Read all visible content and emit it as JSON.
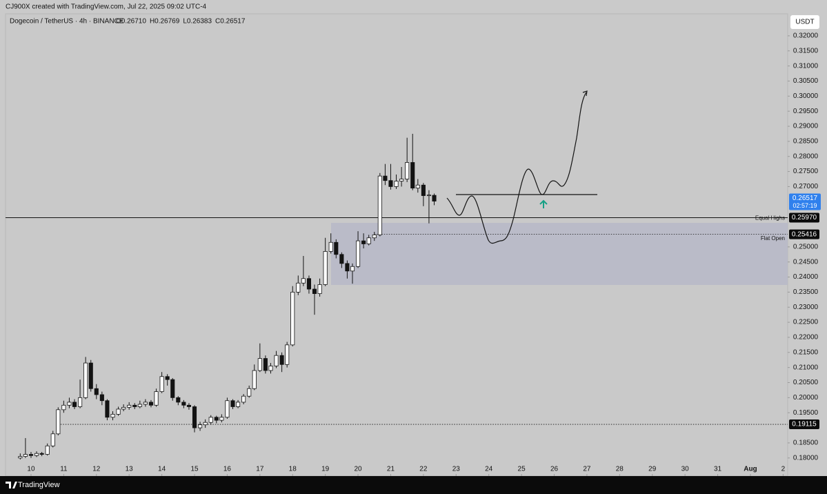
{
  "header": {
    "credit": "CJ900X created with TradingView.com, Jul 22, 2025 09:02 UTC-4",
    "brand": "TradingView"
  },
  "chart_data": {
    "type": "candlestick",
    "symbol": "Dogecoin / TetherUS · 4h · BINANCE",
    "ohlc_text": [
      "O0.26710",
      "H0.26769",
      "L0.26383",
      "C0.26517"
    ],
    "currency": "USDT",
    "up_color": "#ffffff",
    "down_color": "#131313",
    "x": [
      9.67,
      9.83,
      10,
      10.17,
      10.33,
      10.5,
      10.67,
      10.83,
      11,
      11.17,
      11.33,
      11.5,
      11.67,
      11.83,
      12,
      12.17,
      12.33,
      12.5,
      12.67,
      12.83,
      13,
      13.17,
      13.33,
      13.5,
      13.67,
      13.83,
      14,
      14.17,
      14.33,
      14.5,
      14.67,
      14.83,
      15,
      15.17,
      15.33,
      15.5,
      15.67,
      15.83,
      16,
      16.17,
      16.33,
      16.5,
      16.67,
      16.83,
      17,
      17.17,
      17.33,
      17.5,
      17.67,
      17.83,
      18,
      18.17,
      18.33,
      18.5,
      18.67,
      18.83,
      19,
      19.17,
      19.33,
      19.5,
      19.67,
      19.83,
      20,
      20.17,
      20.33,
      20.5,
      20.67,
      20.83,
      21,
      21.17,
      21.33,
      21.5,
      21.67,
      21.83,
      22,
      22.17,
      22.33
    ],
    "open": [
      0.18,
      0.1805,
      0.1812,
      0.1808,
      0.1815,
      0.1812,
      0.184,
      0.188,
      0.196,
      0.1975,
      0.1985,
      0.197,
      0.2,
      0.2115,
      0.203,
      0.201,
      0.199,
      0.1935,
      0.1945,
      0.1962,
      0.1968,
      0.1975,
      0.197,
      0.1978,
      0.1985,
      0.1975,
      0.202,
      0.207,
      0.206,
      0.2,
      0.1985,
      0.1975,
      0.197,
      0.19,
      0.191,
      0.1918,
      0.1935,
      0.1925,
      0.1935,
      0.199,
      0.197,
      0.1985,
      0.2005,
      0.203,
      0.209,
      0.213,
      0.209,
      0.2105,
      0.214,
      0.211,
      0.2175,
      0.235,
      0.238,
      0.2395,
      0.236,
      0.2345,
      0.2375,
      0.2485,
      0.2515,
      0.2475,
      0.2445,
      0.242,
      0.2435,
      0.252,
      0.251,
      0.253,
      0.254,
      0.2735,
      0.272,
      0.27,
      0.2718,
      0.2725,
      0.278,
      0.2695,
      0.2705,
      0.267,
      0.2671
    ],
    "high": [
      0.1815,
      0.1866,
      0.182,
      0.1822,
      0.182,
      0.1848,
      0.189,
      0.1968,
      0.199,
      0.2,
      0.1995,
      0.206,
      0.2135,
      0.2125,
      0.2045,
      0.202,
      0.1995,
      0.1955,
      0.197,
      0.1978,
      0.1985,
      0.1982,
      0.199,
      0.1995,
      0.1992,
      0.203,
      0.2085,
      0.2078,
      0.2065,
      0.2005,
      0.1992,
      0.1982,
      0.1975,
      0.192,
      0.1928,
      0.1942,
      0.194,
      0.1945,
      0.2,
      0.1995,
      0.1992,
      0.2012,
      0.204,
      0.211,
      0.218,
      0.214,
      0.2115,
      0.2155,
      0.215,
      0.2185,
      0.237,
      0.2405,
      0.247,
      0.2405,
      0.2375,
      0.2395,
      0.253,
      0.2545,
      0.2525,
      0.2482,
      0.2455,
      0.2445,
      0.2552,
      0.2545,
      0.254,
      0.255,
      0.2745,
      0.2775,
      0.2775,
      0.274,
      0.2765,
      0.2862,
      0.2875,
      0.2725,
      0.2712,
      0.2688,
      0.26769
    ],
    "low": [
      0.1795,
      0.18,
      0.18,
      0.1803,
      0.1806,
      0.1808,
      0.1835,
      0.1875,
      0.195,
      0.1965,
      0.1962,
      0.1965,
      0.1995,
      0.202,
      0.1995,
      0.1975,
      0.1925,
      0.1925,
      0.194,
      0.1955,
      0.196,
      0.1962,
      0.1965,
      0.197,
      0.1968,
      0.197,
      0.2015,
      0.204,
      0.199,
      0.1975,
      0.1965,
      0.196,
      0.1885,
      0.189,
      0.19,
      0.191,
      0.1915,
      0.1918,
      0.193,
      0.1962,
      0.1965,
      0.1978,
      0.2,
      0.2025,
      0.2085,
      0.208,
      0.208,
      0.2098,
      0.2085,
      0.21,
      0.217,
      0.234,
      0.237,
      0.2345,
      0.2275,
      0.2335,
      0.237,
      0.2478,
      0.2462,
      0.243,
      0.2395,
      0.2378,
      0.243,
      0.2495,
      0.2505,
      0.252,
      0.2535,
      0.2705,
      0.269,
      0.2692,
      0.27,
      0.2715,
      0.2688,
      0.268,
      0.2635,
      0.2578,
      0.26383
    ],
    "close": [
      0.1805,
      0.1812,
      0.1808,
      0.1815,
      0.1812,
      0.184,
      0.188,
      0.196,
      0.1975,
      0.1985,
      0.197,
      0.2,
      0.2115,
      0.203,
      0.201,
      0.199,
      0.1935,
      0.1945,
      0.1962,
      0.1968,
      0.1975,
      0.197,
      0.1978,
      0.1985,
      0.1975,
      0.202,
      0.207,
      0.206,
      0.2,
      0.1985,
      0.1975,
      0.197,
      0.19,
      0.191,
      0.1918,
      0.1935,
      0.1925,
      0.1935,
      0.199,
      0.197,
      0.1985,
      0.2005,
      0.203,
      0.209,
      0.213,
      0.209,
      0.2105,
      0.214,
      0.211,
      0.2175,
      0.235,
      0.238,
      0.2395,
      0.236,
      0.2345,
      0.2375,
      0.2485,
      0.2515,
      0.2475,
      0.2445,
      0.242,
      0.2435,
      0.252,
      0.251,
      0.253,
      0.254,
      0.2735,
      0.272,
      0.27,
      0.2718,
      0.2725,
      0.278,
      0.2695,
      0.2705,
      0.267,
      0.2672,
      0.26517
    ],
    "xlim": [
      9.22,
      33.14
    ],
    "ylim": [
      0.174,
      0.3273
    ],
    "xticks": [
      10,
      11,
      12,
      13,
      14,
      15,
      16,
      17,
      18,
      19,
      20,
      21,
      22,
      23,
      24,
      25,
      26,
      27,
      28,
      29,
      30,
      31,
      {
        "value": 32,
        "label": "Aug"
      },
      {
        "value": 33,
        "label": "2"
      }
    ],
    "yticks": [
      {
        "value": 0.18,
        "label": "0.18000"
      },
      {
        "value": 0.185,
        "label": "0.18500"
      },
      {
        "value": 0.195,
        "label": "0.19500"
      },
      {
        "value": 0.2,
        "label": "0.20000"
      },
      {
        "value": 0.205,
        "label": "0.20500"
      },
      {
        "value": 0.21,
        "label": "0.21000"
      },
      {
        "value": 0.215,
        "label": "0.21500"
      },
      {
        "value": 0.22,
        "label": "0.22000"
      },
      {
        "value": 0.225,
        "label": "0.22500"
      },
      {
        "value": 0.23,
        "label": "0.23000"
      },
      {
        "value": 0.235,
        "label": "0.23500"
      },
      {
        "value": 0.24,
        "label": "0.24000"
      },
      {
        "value": 0.245,
        "label": "0.24500"
      },
      {
        "value": 0.25,
        "label": "0.25000"
      },
      {
        "value": 0.27,
        "label": "0.27000"
      },
      {
        "value": 0.275,
        "label": "0.27500"
      },
      {
        "value": 0.28,
        "label": "0.28000"
      },
      {
        "value": 0.285,
        "label": "0.28500"
      },
      {
        "value": 0.29,
        "label": "0.29000"
      },
      {
        "value": 0.295,
        "label": "0.29500"
      },
      {
        "value": 0.3,
        "label": "0.30000"
      },
      {
        "value": 0.305,
        "label": "0.30500"
      },
      {
        "value": 0.31,
        "label": "0.31000"
      },
      {
        "value": 0.315,
        "label": "0.31500"
      },
      {
        "value": 0.32,
        "label": "0.32000"
      }
    ],
    "levels": [
      {
        "name": "Equal Highs",
        "value": 0.2597,
        "label": "0.25970",
        "style": "solid",
        "start": 9.22
      },
      {
        "name": "Flat Open",
        "value": 0.25416,
        "label": "0.25416",
        "style": "dotted",
        "start": 20.5
      },
      {
        "value": 0.19115,
        "label": "0.19115",
        "style": "dotted",
        "start": 10.83
      }
    ],
    "last_price": {
      "value": 0.26517,
      "label": "0.26517",
      "countdown": "02:57:19",
      "color": "#2f80ed"
    }
  }
}
